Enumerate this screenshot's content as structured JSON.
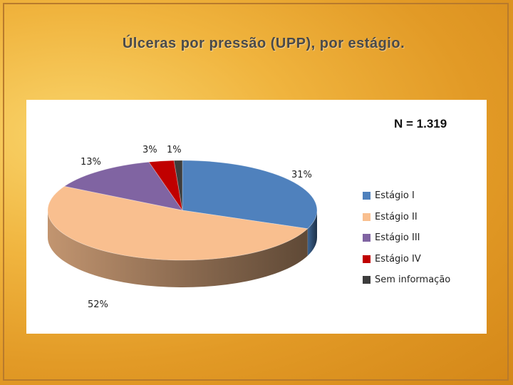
{
  "slide": {
    "title": "Úlceras por pressão (UPP), por estágio."
  },
  "chart_data": {
    "type": "pie",
    "annotation": "N = 1.319",
    "legend_position": "right",
    "slices": [
      {
        "name": "Estágio I",
        "value": 31,
        "label": "31%",
        "color": "#4f81bd"
      },
      {
        "name": "Estágio II",
        "value": 52,
        "label": "52%",
        "color": "#f9bf8f"
      },
      {
        "name": "Estágio III",
        "value": 13,
        "label": "13%",
        "color": "#8064a2"
      },
      {
        "name": "Estágio IV",
        "value": 3,
        "label": "3%",
        "color": "#c00000"
      },
      {
        "name": "Sem informação",
        "value": 1,
        "label": "1%",
        "color": "#3d3d3d"
      }
    ]
  }
}
